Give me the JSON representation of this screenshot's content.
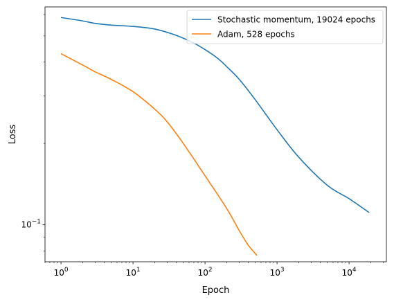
{
  "chart_data": {
    "type": "line",
    "title": "",
    "xlabel": "Epoch",
    "ylabel": "Loss",
    "xscale": "log",
    "yscale": "log",
    "xlim": [
      0.6,
      33000
    ],
    "ylim": [
      0.073,
      0.64
    ],
    "grid": false,
    "legend_position": "top-right",
    "x_ticks": [
      {
        "value": 1,
        "label": "10⁰",
        "base": "10",
        "exp": "0"
      },
      {
        "value": 10,
        "label": "10¹",
        "base": "10",
        "exp": "1"
      },
      {
        "value": 100,
        "label": "10²",
        "base": "10",
        "exp": "2"
      },
      {
        "value": 1000,
        "label": "10³",
        "base": "10",
        "exp": "3"
      },
      {
        "value": 10000,
        "label": "10⁴",
        "base": "10",
        "exp": "4"
      }
    ],
    "y_ticks": [
      {
        "value": 0.1,
        "label": "10⁻¹",
        "base": "10",
        "exp": "−1"
      }
    ],
    "series": [
      {
        "name": "Stochastic momentum, 19024 epochs",
        "color": "#1f77b4",
        "x": [
          1,
          2,
          3,
          5,
          10,
          20,
          40,
          70,
          100,
          150,
          200,
          300,
          500,
          1000,
          2000,
          5000,
          10000,
          19024
        ],
        "y": [
          0.585,
          0.568,
          0.556,
          0.548,
          0.542,
          0.53,
          0.502,
          0.47,
          0.445,
          0.413,
          0.385,
          0.345,
          0.29,
          0.225,
          0.178,
          0.14,
          0.125,
          0.111
        ]
      },
      {
        "name": "Adam, 528 epochs",
        "color": "#ff7f0e",
        "x": [
          1,
          2,
          3,
          5,
          10,
          20,
          30,
          50,
          100,
          200,
          300,
          400,
          528
        ],
        "y": [
          0.43,
          0.39,
          0.368,
          0.345,
          0.311,
          0.268,
          0.24,
          0.2,
          0.152,
          0.115,
          0.095,
          0.084,
          0.077
        ]
      }
    ]
  }
}
